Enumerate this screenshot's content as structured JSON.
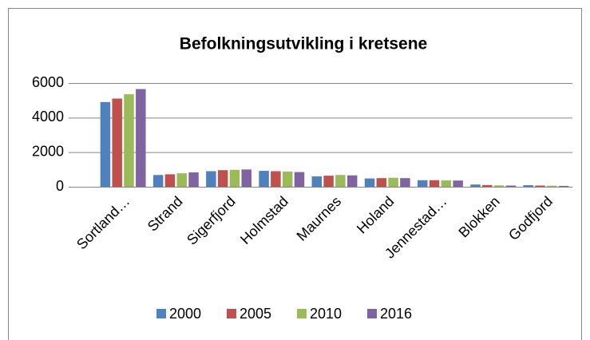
{
  "chart_data": {
    "type": "bar",
    "title": "Befolkningsutvikling i kretsene",
    "categories": [
      "Sortland…",
      "Strand",
      "Sigerfjord",
      "Holmstad",
      "Maurnes",
      "Holand",
      "Jennestad…",
      "Blokken",
      "Godfjord"
    ],
    "series": [
      {
        "name": "2000",
        "color": "#4f81bd",
        "values": [
          4900,
          680,
          900,
          920,
          600,
          480,
          380,
          130,
          90
        ]
      },
      {
        "name": "2005",
        "color": "#c0504d",
        "values": [
          5100,
          720,
          960,
          900,
          640,
          500,
          380,
          100,
          70
        ]
      },
      {
        "name": "2010",
        "color": "#9bbb59",
        "values": [
          5350,
          780,
          980,
          880,
          680,
          520,
          370,
          80,
          60
        ]
      },
      {
        "name": "2016",
        "color": "#8064a2",
        "values": [
          5650,
          830,
          1000,
          850,
          660,
          500,
          360,
          70,
          50
        ]
      }
    ],
    "ylim": [
      0,
      6000
    ],
    "yticks": [
      0,
      2000,
      4000,
      6000
    ],
    "grid": true,
    "legend": "bottom"
  }
}
